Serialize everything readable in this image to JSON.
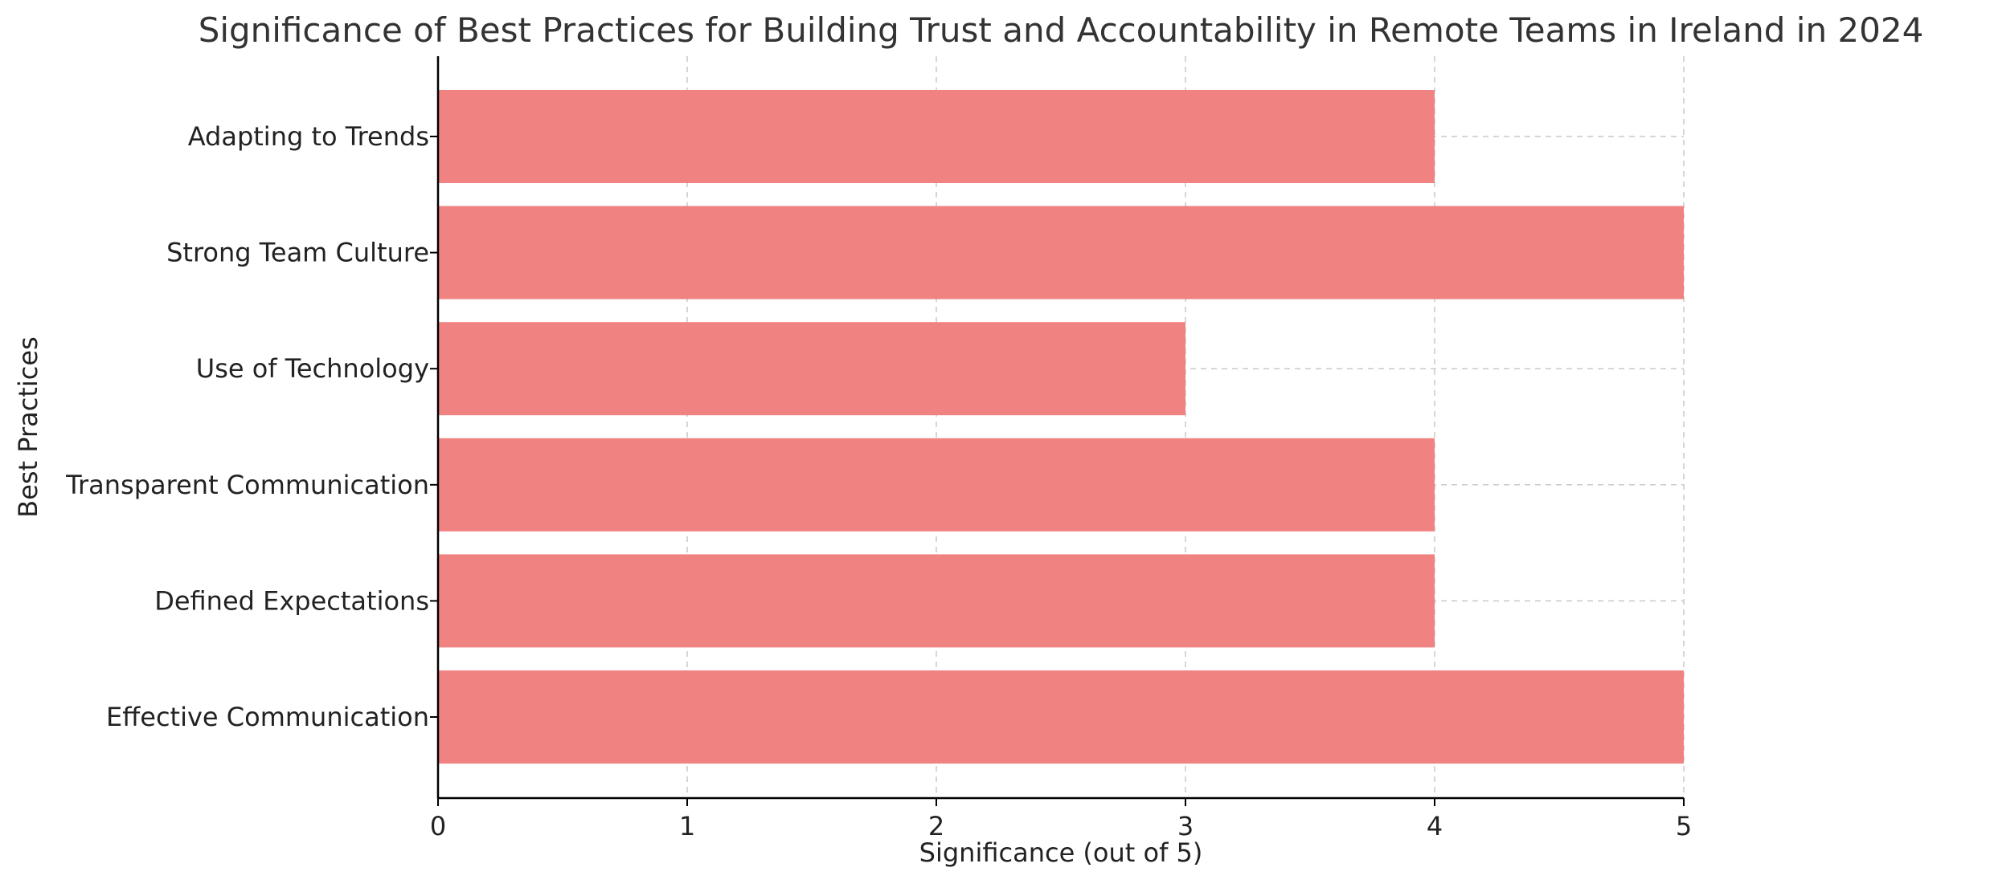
{
  "chart_data": {
    "type": "bar",
    "orientation": "horizontal",
    "title": "Significance of Best Practices for Building Trust and Accountability in Remote Teams in Ireland in 2024",
    "xlabel": "Significance (out of 5)",
    "ylabel": "Best Practices",
    "categories": [
      "Effective Communication",
      "Defined Expectations",
      "Transparent Communication",
      "Use of Technology",
      "Strong Team Culture",
      "Adapting to Trends"
    ],
    "values": [
      5,
      4,
      4,
      3,
      5,
      4
    ],
    "xlim": [
      0,
      5
    ],
    "xticks": [
      0,
      1,
      2,
      3,
      4,
      5
    ],
    "grid": true,
    "bar_color": "#F08080"
  }
}
